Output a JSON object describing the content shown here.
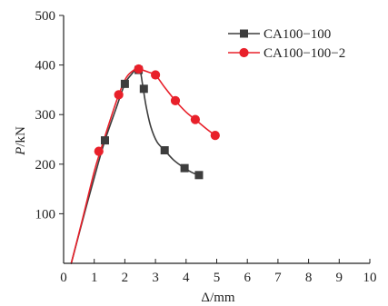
{
  "chart_data": {
    "type": "line",
    "title": "",
    "xlabel_italic": "",
    "xlabel": "Δ/mm",
    "ylabel_italic": "P",
    "ylabel": "/kN",
    "xlim": [
      0,
      10
    ],
    "ylim": [
      0,
      500
    ],
    "xticks": [
      "0",
      "1",
      "2",
      "3",
      "4",
      "5",
      "6",
      "7",
      "8",
      "9",
      "10"
    ],
    "yticks": [
      "100",
      "200",
      "300",
      "400",
      "500"
    ],
    "grid": false,
    "legend_position": "top-right",
    "series": [
      {
        "name": "CA100−100",
        "color": "#3d3d3d",
        "marker": "square",
        "curve": [
          [
            0.25,
            0
          ],
          [
            0.7,
            105
          ],
          [
            1.1,
            195
          ],
          [
            1.35,
            248
          ],
          [
            1.7,
            310
          ],
          [
            2.0,
            362
          ],
          [
            2.2,
            380
          ],
          [
            2.38,
            392
          ],
          [
            2.5,
            388
          ],
          [
            2.58,
            360
          ],
          [
            2.7,
            315
          ],
          [
            2.85,
            275
          ],
          [
            3.05,
            245
          ],
          [
            3.3,
            228
          ],
          [
            3.6,
            208
          ],
          [
            3.95,
            192
          ],
          [
            4.2,
            183
          ],
          [
            4.42,
            178
          ]
        ],
        "markers": [
          [
            1.35,
            248
          ],
          [
            2.0,
            362
          ],
          [
            2.45,
            390
          ],
          [
            2.62,
            352
          ],
          [
            3.3,
            228
          ],
          [
            3.95,
            192
          ],
          [
            4.42,
            178
          ]
        ]
      },
      {
        "name": "CA100−100−2",
        "color": "#e8202a",
        "marker": "circle",
        "curve": [
          [
            0.25,
            0
          ],
          [
            0.6,
            85
          ],
          [
            1.0,
            185
          ],
          [
            1.2,
            226
          ],
          [
            1.5,
            285
          ],
          [
            1.8,
            340
          ],
          [
            2.05,
            375
          ],
          [
            2.3,
            390
          ],
          [
            2.45,
            392
          ],
          [
            2.8,
            385
          ],
          [
            3.0,
            380
          ],
          [
            3.3,
            355
          ],
          [
            3.65,
            328
          ],
          [
            4.0,
            305
          ],
          [
            4.3,
            290
          ],
          [
            4.65,
            272
          ],
          [
            4.95,
            258
          ]
        ],
        "markers": [
          [
            1.15,
            226
          ],
          [
            1.8,
            340
          ],
          [
            2.45,
            392
          ],
          [
            3.0,
            380
          ],
          [
            3.65,
            328
          ],
          [
            4.3,
            290
          ],
          [
            4.95,
            258
          ]
        ]
      }
    ]
  }
}
